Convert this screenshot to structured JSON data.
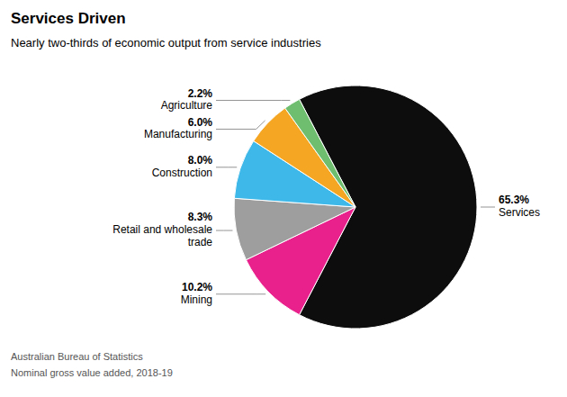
{
  "chart_data": {
    "type": "pie",
    "title": "Services Driven",
    "subtitle": "Nearly two-thirds of economic output from service industries",
    "annotations": [
      "Australian Bureau of Statistics",
      "Nominal gross value added, 2018-19"
    ],
    "categories": [
      "Services",
      "Mining",
      "Retail and wholesale\ntrade",
      "Construction",
      "Manufacturing",
      "Agriculture"
    ],
    "values": [
      65.3,
      10.2,
      8.3,
      8.0,
      6.0,
      2.2
    ],
    "value_labels": [
      "65.3%",
      "10.2%",
      "8.3%",
      "8.0%",
      "6.0%",
      "2.2%"
    ],
    "colors": [
      "#0d0d0d",
      "#e8218c",
      "#9e9e9e",
      "#3db8e8",
      "#f5a623",
      "#6fbe6f"
    ],
    "data_labels": true
  }
}
